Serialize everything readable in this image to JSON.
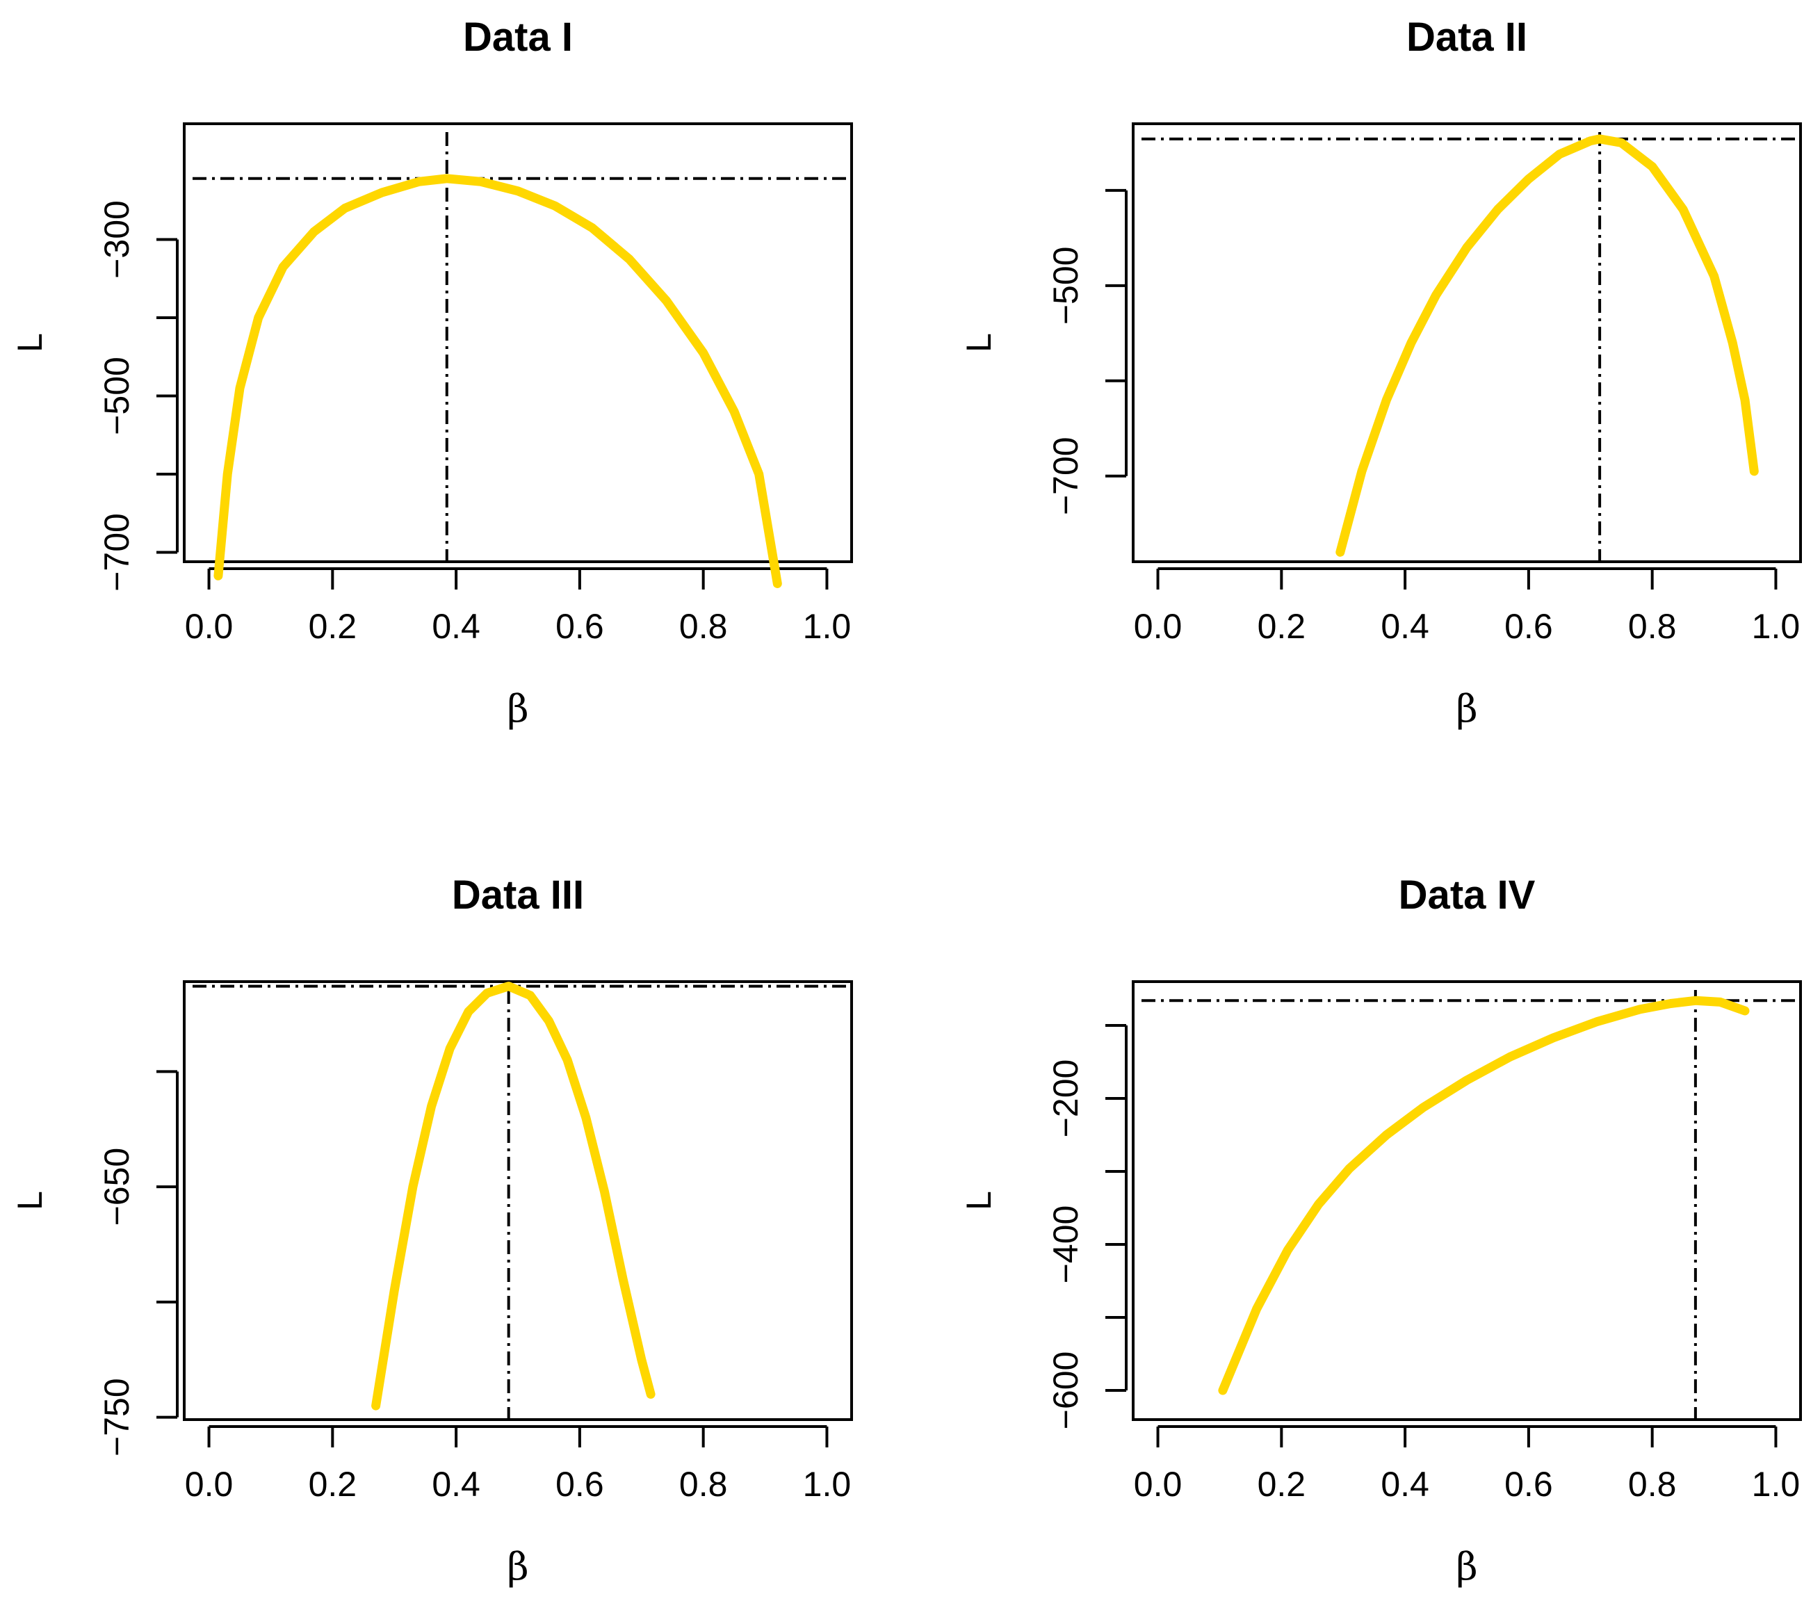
{
  "chart_data": [
    {
      "type": "line",
      "title": "Data I",
      "xlabel": "β",
      "ylabel": "L",
      "xlim": [
        -0.04,
        1.04
      ],
      "ylim": [
        -712,
        -152
      ],
      "xticks": [
        0.0,
        0.2,
        0.4,
        0.6,
        0.8,
        1.0
      ],
      "xtick_labels": [
        "0.0",
        "0.2",
        "0.4",
        "0.6",
        "0.8",
        "1.0"
      ],
      "yticks": [
        -300,
        -400,
        -500,
        -600,
        -700
      ],
      "ytick_labels": [
        "−300",
        "",
        "−500",
        "",
        "−700"
      ],
      "series_color": "#FFD700",
      "x": [
        0.015,
        0.03,
        0.05,
        0.08,
        0.12,
        0.17,
        0.22,
        0.28,
        0.34,
        0.385,
        0.44,
        0.5,
        0.56,
        0.62,
        0.68,
        0.74,
        0.8,
        0.85,
        0.89,
        0.92
      ],
      "y": [
        -730,
        -600,
        -490,
        -400,
        -335,
        -290,
        -260,
        -240,
        -226,
        -222,
        -226,
        -238,
        -257,
        -285,
        -325,
        -378,
        -445,
        -520,
        -600,
        -740
      ],
      "hline": -222,
      "vline": 0.385
    },
    {
      "type": "line",
      "title": "Data II",
      "xlabel": "β",
      "ylabel": "L",
      "xlim": [
        -0.04,
        1.04
      ],
      "ylim": [
        -790,
        -330
      ],
      "xticks": [
        0.0,
        0.2,
        0.4,
        0.6,
        0.8,
        1.0
      ],
      "xtick_labels": [
        "0.0",
        "0.2",
        "0.4",
        "0.6",
        "0.8",
        "1.0"
      ],
      "yticks": [
        -400,
        -500,
        -600,
        -700
      ],
      "ytick_labels": [
        "",
        "−500",
        "",
        "−700"
      ],
      "series_color": "#FFD700",
      "x": [
        0.295,
        0.33,
        0.37,
        0.41,
        0.45,
        0.5,
        0.55,
        0.6,
        0.65,
        0.7,
        0.715,
        0.75,
        0.8,
        0.85,
        0.9,
        0.93,
        0.95,
        0.965
      ],
      "y": [
        -780,
        -695,
        -620,
        -560,
        -510,
        -460,
        -420,
        -388,
        -362,
        -348,
        -346,
        -350,
        -375,
        -420,
        -490,
        -560,
        -620,
        -695
      ],
      "hline": -346,
      "vline": 0.715
    },
    {
      "type": "line",
      "title": "Data III",
      "xlabel": "β",
      "ylabel": "L",
      "xlim": [
        -0.04,
        1.04
      ],
      "ylim": [
        -751,
        -561
      ],
      "xticks": [
        0.0,
        0.2,
        0.4,
        0.6,
        0.8,
        1.0
      ],
      "xtick_labels": [
        "0.0",
        "0.2",
        "0.4",
        "0.6",
        "0.8",
        "1.0"
      ],
      "yticks": [
        -600,
        -650,
        -700,
        -750
      ],
      "ytick_labels": [
        "",
        "−650",
        "",
        "−750"
      ],
      "series_color": "#FFD700",
      "x": [
        0.27,
        0.3,
        0.33,
        0.36,
        0.39,
        0.42,
        0.45,
        0.485,
        0.52,
        0.55,
        0.58,
        0.61,
        0.64,
        0.67,
        0.7,
        0.715
      ],
      "y": [
        -745,
        -695,
        -650,
        -615,
        -590,
        -574,
        -566,
        -563,
        -567,
        -578,
        -595,
        -620,
        -652,
        -690,
        -725,
        -740
      ],
      "hline": -563,
      "vline": 0.485
    },
    {
      "type": "line",
      "title": "Data IV",
      "xlabel": "β",
      "ylabel": "L",
      "xlim": [
        -0.04,
        1.04
      ],
      "ylim": [
        -640,
        -40
      ],
      "xticks": [
        0.0,
        0.2,
        0.4,
        0.6,
        0.8,
        1.0
      ],
      "xtick_labels": [
        "0.0",
        "0.2",
        "0.4",
        "0.6",
        "0.8",
        "1.0"
      ],
      "yticks": [
        -100,
        -200,
        -300,
        -400,
        -500,
        -600
      ],
      "ytick_labels": [
        "",
        "−200",
        "",
        "−400",
        "",
        "−600"
      ],
      "series_color": "#FFD700",
      "x": [
        0.105,
        0.16,
        0.21,
        0.26,
        0.31,
        0.37,
        0.43,
        0.5,
        0.57,
        0.64,
        0.71,
        0.78,
        0.83,
        0.87,
        0.91,
        0.95
      ],
      "y": [
        -600,
        -488,
        -408,
        -345,
        -296,
        -250,
        -212,
        -175,
        -143,
        -117,
        -95,
        -78,
        -70,
        -66,
        -68,
        -80
      ],
      "hline": -66,
      "vline": 0.87
    }
  ]
}
